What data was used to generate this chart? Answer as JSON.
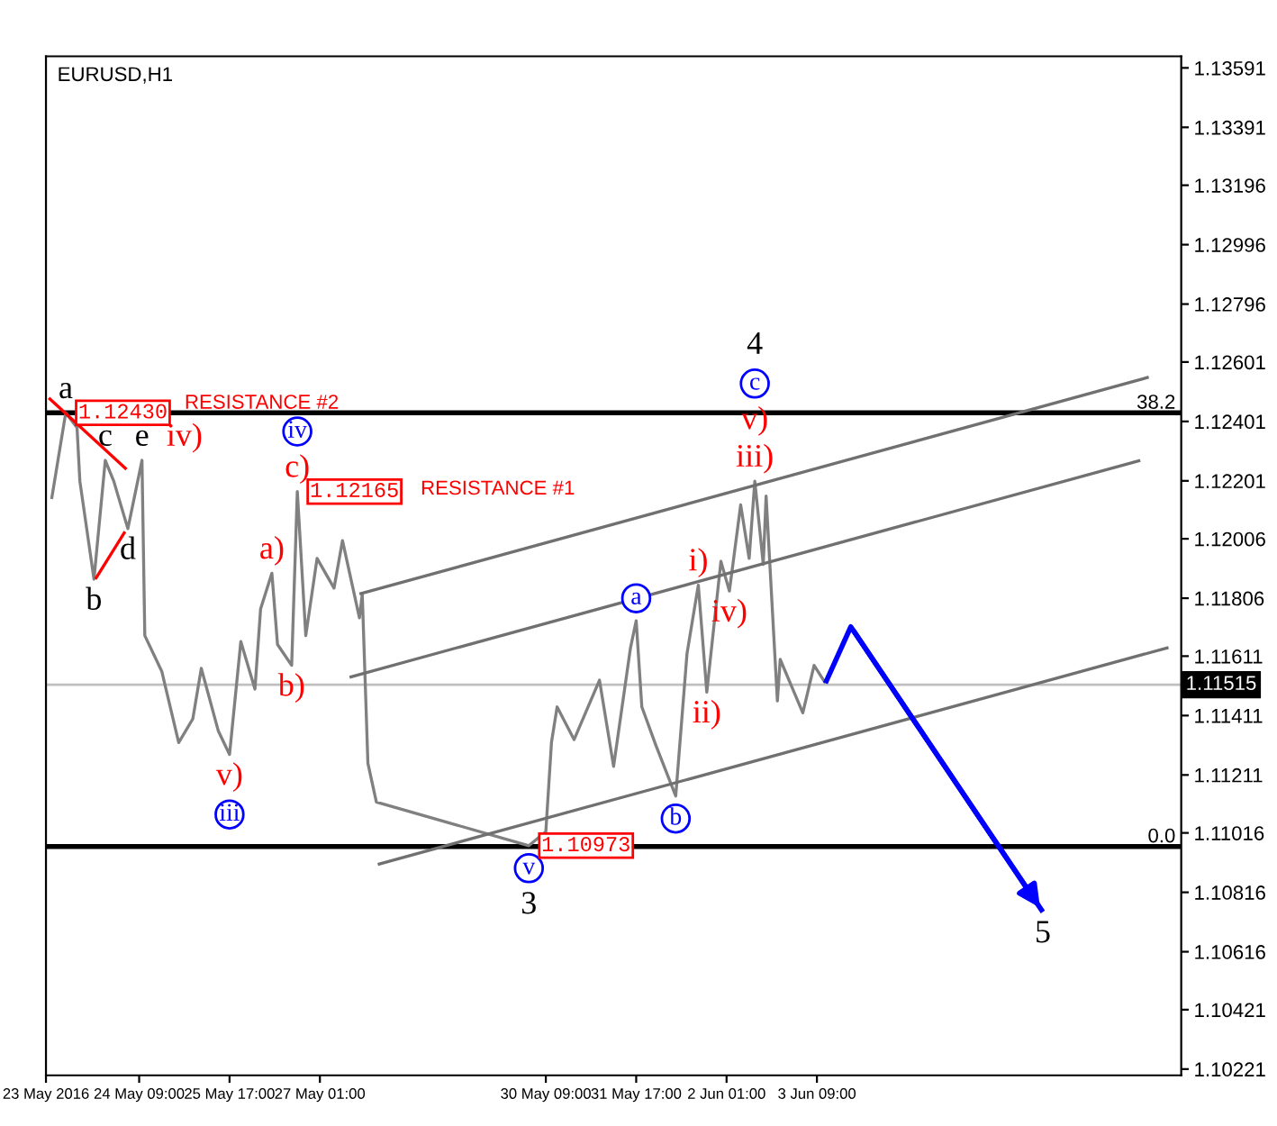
{
  "chart_data": {
    "type": "line",
    "title": "EURUSD,H1",
    "xlim": [
      "2016-05-23T00:00",
      "2016-06-08T18:00"
    ],
    "ylim": [
      1.102,
      1.1363
    ],
    "xticks": [
      {
        "value": "2016-05-23T00:00",
        "label": "23 May 2016"
      },
      {
        "value": "2016-05-24T09:00",
        "label": "24 May 09:00"
      },
      {
        "value": "2016-05-25T17:00",
        "label": "25 May 17:00"
      },
      {
        "value": "2016-05-27T01:00",
        "label": "27 May 01:00"
      },
      {
        "value": "2016-05-30T09:00",
        "label": "30 May 09:00"
      },
      {
        "value": "2016-05-31T17:00",
        "label": "31 May 17:00"
      },
      {
        "value": "2016-06-02T01:00",
        "label": "2 Jun 01:00"
      },
      {
        "value": "2016-06-03T09:00",
        "label": "3 Jun 09:00"
      }
    ],
    "yticks": [
      1.13591,
      1.13391,
      1.13196,
      1.12996,
      1.12796,
      1.12601,
      1.12401,
      1.12201,
      1.12006,
      1.11806,
      1.11611,
      1.11411,
      1.11211,
      1.11016,
      1.10816,
      1.10616,
      1.10421,
      1.10221
    ],
    "series": [
      {
        "color": "#808080",
        "x": [
          "2016-05-23T02:00",
          "2016-05-23T07:00",
          "2016-05-23T11:00",
          "2016-05-23T12:00",
          "2016-05-23T17:00",
          "2016-05-23T21:00",
          "2016-05-24T00:00",
          "2016-05-24T05:00",
          "2016-05-24T10:00",
          "2016-05-24T11:00",
          "2016-05-24T17:00",
          "2016-05-24T23:00",
          "2016-05-25T04:00",
          "2016-05-25T07:00",
          "2016-05-25T13:00",
          "2016-05-25T17:00",
          "2016-05-25T21:00",
          "2016-05-26T02:00",
          "2016-05-26T04:00",
          "2016-05-26T08:00",
          "2016-05-26T10:00",
          "2016-05-26T15:00",
          "2016-05-26T17:00",
          "2016-05-26T20:00",
          "2016-05-27T00:00",
          "2016-05-27T06:00",
          "2016-05-27T09:00",
          "2016-05-27T15:00",
          "2016-05-27T16:00",
          "2016-05-27T18:00",
          "2016-05-27T21:00",
          "2016-05-30T03:00",
          "2016-05-30T09:00",
          "2016-05-30T11:00",
          "2016-05-30T13:00",
          "2016-05-30T19:00",
          "2016-05-31T04:00",
          "2016-05-31T09:00",
          "2016-05-31T15:00",
          "2016-05-31T17:00",
          "2016-05-31T19:00",
          "2016-06-01T00:00",
          "2016-06-01T07:00",
          "2016-06-01T11:00",
          "2016-06-01T15:00",
          "2016-06-01T18:00",
          "2016-06-01T23:00",
          "2016-06-02T02:00",
          "2016-06-02T06:00",
          "2016-06-02T09:00",
          "2016-06-02T11:00",
          "2016-06-02T14:00",
          "2016-06-02T15:00",
          "2016-06-02T19:00",
          "2016-06-02T20:00",
          "2016-06-03T04:00",
          "2016-06-03T08:00",
          "2016-06-03T12:00"
        ],
        "values": [
          1.1214,
          1.1243,
          1.1238,
          1.122,
          1.1187,
          1.1227,
          1.122,
          1.1204,
          1.1227,
          1.1168,
          1.1156,
          1.1132,
          1.114,
          1.1157,
          1.1136,
          1.1128,
          1.1166,
          1.115,
          1.1177,
          1.1189,
          1.1165,
          1.1158,
          1.12165,
          1.1168,
          1.1194,
          1.1184,
          1.12,
          1.1174,
          1.1182,
          1.1125,
          1.1112,
          1.10973,
          1.1102,
          1.1132,
          1.1144,
          1.1133,
          1.1153,
          1.1124,
          1.1164,
          1.1173,
          1.1144,
          1.1131,
          1.1114,
          1.1162,
          1.1185,
          1.1149,
          1.1193,
          1.1183,
          1.1212,
          1.1194,
          1.122,
          1.1192,
          1.1215,
          1.1146,
          1.116,
          1.1142,
          1.1158,
          1.1152
        ]
      },
      {
        "type": "line",
        "color": "#707070",
        "x": [
          "2016-05-27T15:00",
          "2016-06-08T06:30"
        ],
        "values": [
          1.1182,
          1.1255
        ]
      },
      {
        "type": "line",
        "color": "#707070",
        "x": [
          "2016-05-27T11:30",
          "2016-06-08T03:30"
        ],
        "values": [
          1.1154,
          1.1227
        ]
      },
      {
        "type": "line",
        "color": "#707070",
        "x": [
          "2016-05-27T21:30",
          "2016-06-08T13:30"
        ],
        "values": [
          1.1091,
          1.1164
        ]
      },
      {
        "type": "line",
        "color": "#ff0000",
        "x": [
          "2016-05-23T01:00",
          "2016-05-24T04:30"
        ],
        "values": [
          1.1248,
          1.1224
        ]
      },
      {
        "type": "line",
        "color": "#ff0000",
        "x": [
          "2016-05-23T17:30",
          "2016-05-24T04:00"
        ],
        "values": [
          1.1187,
          1.1203
        ]
      },
      {
        "type": "line",
        "color": "#0000ff",
        "x": [
          "2016-06-03T12:00",
          "2016-06-03T21:00",
          "2016-06-06T17:00"
        ],
        "values": [
          1.1152,
          1.1171,
          1.1075
        ]
      }
    ],
    "ref_lines": [
      {
        "axis": "y",
        "value": 1.1243,
        "label": "RESISTANCE #2",
        "color": "#000000"
      },
      {
        "axis": "y",
        "value": 1.1097,
        "color": "#000000"
      },
      {
        "axis": "y",
        "value": 1.11515,
        "label": "1.11515",
        "color": "#c0c0c0"
      }
    ],
    "annotations": [
      {
        "text": "a",
        "x": "2016-05-23T07:00",
        "y": 1.1243
      },
      {
        "text": "1.12430",
        "x": "2016-05-23T07:00",
        "y": 1.1243
      },
      {
        "text": "b",
        "x": "2016-05-23T17:00",
        "y": 1.1187
      },
      {
        "text": "c",
        "x": "2016-05-23T21:00",
        "y": 1.1227
      },
      {
        "text": "d",
        "x": "2016-05-24T05:00",
        "y": 1.1204
      },
      {
        "text": "e",
        "x": "2016-05-24T10:00",
        "y": 1.1227
      },
      "iv)",
      {
        "text": "c)",
        "x": "2016-05-26T17:00",
        "y": 1.12165
      },
      "iv",
      {
        "text": "1.12165",
        "x": "2016-05-26T17:00",
        "y": 1.12165
      },
      {
        "text": "a)",
        "x": "2016-05-26T08:00",
        "y": 1.1189
      },
      {
        "text": "b)",
        "x": "2016-05-26T15:00",
        "y": 1.1158
      },
      {
        "text": "v)",
        "x": "2016-05-25T17:00",
        "y": 1.1128
      },
      "iii",
      {
        "text": "v",
        "x": "2016-05-30T03:00",
        "y": 1.10973
      },
      "3",
      {
        "text": "1.10973",
        "x": "2016-05-30T03:00",
        "y": 1.10973
      },
      {
        "text": "a",
        "x": "2016-05-31T17:00",
        "y": 1.1173
      },
      {
        "text": "b",
        "x": "2016-06-01T07:00",
        "y": 1.1114
      },
      {
        "text": "i)",
        "x": "2016-06-01T15:00",
        "y": 1.1185
      },
      {
        "text": "ii)",
        "x": "2016-06-01T18:00",
        "y": 1.1149
      },
      {
        "text": "iv)",
        "x": "2016-06-02T02:00",
        "y": 1.1183
      },
      {
        "text": "iii)",
        "x": "2016-06-02T11:00",
        "y": 1.122
      },
      "v)",
      "c",
      "4",
      {
        "text": "5",
        "x": "2016-06-06T17:00",
        "y": 1.1075
      },
      "38.2",
      "0.0",
      "RESISTANCE #1"
    ]
  }
}
